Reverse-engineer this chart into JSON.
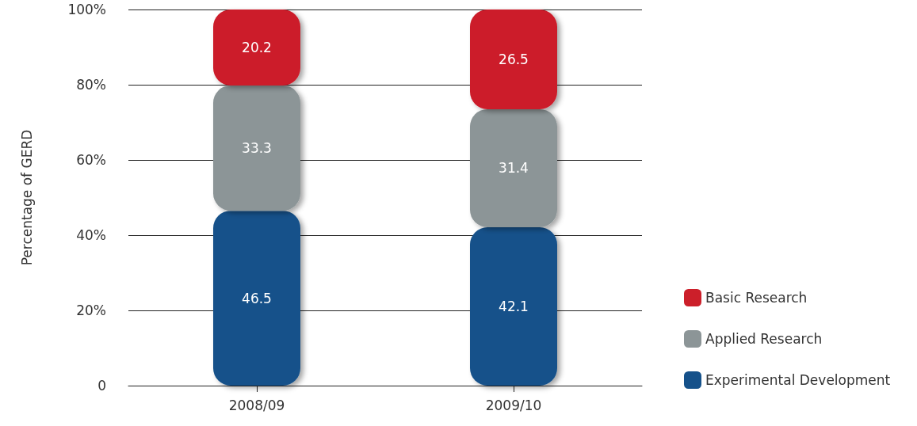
{
  "chart_data": {
    "type": "bar",
    "stacked": true,
    "ylabel": "Percentage of GERD",
    "categories": [
      "2008/09",
      "2009/10"
    ],
    "series": [
      {
        "name": "Experimental Development",
        "color": "#15518a",
        "values": [
          46.5,
          42.1
        ]
      },
      {
        "name": "Applied Research",
        "color": "#8c9597",
        "values": [
          33.3,
          31.4
        ]
      },
      {
        "name": "Basic Research",
        "color": "#cc1f2a",
        "values": [
          20.2,
          26.5
        ]
      }
    ],
    "ylim": [
      0,
      100
    ],
    "yticks": [
      0,
      {
        "value": 20,
        "label": "20%"
      },
      {
        "value": 40,
        "label": "40%"
      },
      {
        "value": 60,
        "label": "60%"
      },
      {
        "value": 80,
        "label": "80%"
      },
      {
        "value": 100,
        "label": "100%"
      }
    ],
    "grid": "y",
    "legend": "right",
    "data_labels": true
  }
}
